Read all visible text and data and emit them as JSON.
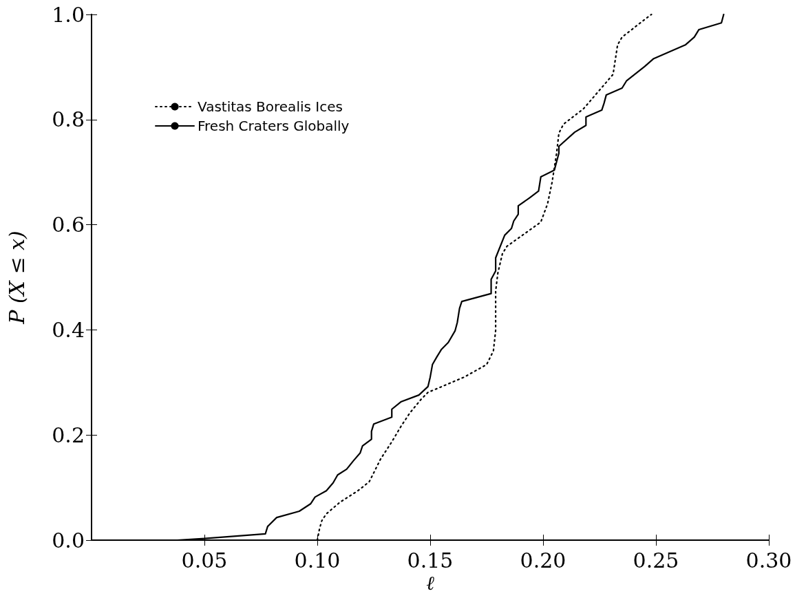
{
  "chart_data": {
    "type": "line",
    "xlabel": "ℓ",
    "ylabel": "P (X ≤ x)",
    "xlim": [
      0,
      0.3
    ],
    "ylim": [
      0,
      1
    ],
    "xticks": [
      {
        "value": 0.05,
        "label": "0.05"
      },
      {
        "value": 0.1,
        "label": "0.10"
      },
      {
        "value": 0.15,
        "label": "0.15"
      },
      {
        "value": 0.2,
        "label": "0.20"
      },
      {
        "value": 0.25,
        "label": "0.25"
      },
      {
        "value": 0.3,
        "label": "0.30"
      }
    ],
    "yticks": [
      {
        "value": 0,
        "label": "0.0"
      },
      {
        "value": 0.2,
        "label": "0.2"
      },
      {
        "value": 0.4,
        "label": "0.4"
      },
      {
        "value": 0.6,
        "label": "0.6"
      },
      {
        "value": 0.8,
        "label": "0.8"
      },
      {
        "value": 1,
        "label": "1.0"
      }
    ],
    "grid": false,
    "legend": "top left",
    "marker": "none",
    "series": [
      {
        "name": "Vastitas Borealis Ices",
        "color": "#000000",
        "line_style": "dotted",
        "x": [
          0.1,
          0.101,
          0.102,
          0.104,
          0.11,
          0.118,
          0.123,
          0.125,
          0.128,
          0.133,
          0.137,
          0.141,
          0.146,
          0.149,
          0.165,
          0.175,
          0.178,
          0.179,
          0.179,
          0.18,
          0.182,
          0.184,
          0.199,
          0.202,
          0.204,
          0.206,
          0.207,
          0.209,
          0.218,
          0.225,
          0.231,
          0.233,
          0.235,
          0.247,
          0.248
        ],
        "values": [
          0,
          0.022,
          0.037,
          0.05,
          0.072,
          0.094,
          0.111,
          0.128,
          0.154,
          0.187,
          0.216,
          0.242,
          0.268,
          0.281,
          0.31,
          0.334,
          0.36,
          0.399,
          0.474,
          0.509,
          0.545,
          0.559,
          0.605,
          0.64,
          0.681,
          0.736,
          0.774,
          0.791,
          0.821,
          0.856,
          0.886,
          0.942,
          0.957,
          0.997,
          1
        ]
      },
      {
        "name": "Fresh Craters Globally",
        "color": "#000000",
        "line_style": "solid",
        "x": [
          0.038,
          0.05,
          0.077,
          0.078,
          0.082,
          0.092,
          0.097,
          0.099,
          0.104,
          0.107,
          0.109,
          0.113,
          0.116,
          0.119,
          0.12,
          0.124,
          0.124,
          0.125,
          0.133,
          0.133,
          0.137,
          0.145,
          0.149,
          0.15,
          0.151,
          0.153,
          0.155,
          0.158,
          0.161,
          0.162,
          0.163,
          0.164,
          0.177,
          0.177,
          0.179,
          0.179,
          0.183,
          0.186,
          0.187,
          0.189,
          0.189,
          0.194,
          0.198,
          0.199,
          0.205,
          0.206,
          0.207,
          0.207,
          0.214,
          0.219,
          0.219,
          0.226,
          0.227,
          0.228,
          0.235,
          0.237,
          0.245,
          0.249,
          0.263,
          0.267,
          0.269,
          0.279,
          0.28
        ],
        "values": [
          0,
          0.003,
          0.012,
          0.026,
          0.043,
          0.055,
          0.069,
          0.082,
          0.094,
          0.109,
          0.124,
          0.135,
          0.151,
          0.166,
          0.179,
          0.192,
          0.207,
          0.221,
          0.234,
          0.249,
          0.263,
          0.276,
          0.292,
          0.31,
          0.334,
          0.349,
          0.363,
          0.376,
          0.398,
          0.414,
          0.441,
          0.454,
          0.469,
          0.496,
          0.512,
          0.537,
          0.58,
          0.593,
          0.607,
          0.62,
          0.636,
          0.651,
          0.664,
          0.691,
          0.704,
          0.72,
          0.736,
          0.749,
          0.776,
          0.789,
          0.805,
          0.818,
          0.831,
          0.847,
          0.86,
          0.874,
          0.901,
          0.916,
          0.942,
          0.957,
          0.971,
          0.984,
          1
        ]
      }
    ]
  }
}
